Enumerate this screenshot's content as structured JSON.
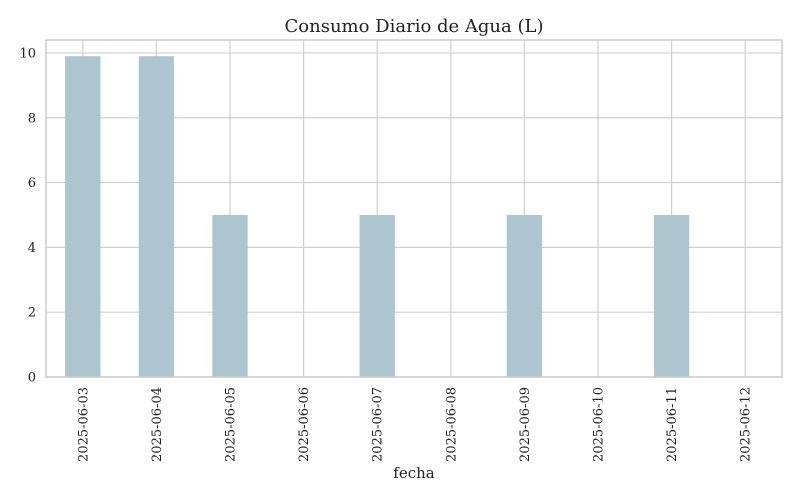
{
  "chart_data": {
    "type": "bar",
    "title": "Consumo Diario de Agua (L)",
    "xlabel": "fecha",
    "ylabel": "",
    "categories": [
      "2025-06-03",
      "2025-06-04",
      "2025-06-05",
      "2025-06-06",
      "2025-06-07",
      "2025-06-08",
      "2025-06-09",
      "2025-06-10",
      "2025-06-11",
      "2025-06-12"
    ],
    "values": [
      9.9,
      9.9,
      5.0,
      0,
      5.0,
      0,
      5.0,
      0,
      5.0,
      0
    ],
    "ylim": [
      0,
      10.4
    ],
    "yticks": [
      0,
      2,
      4,
      6,
      8,
      10
    ],
    "grid": true,
    "legend": "none",
    "colors": {
      "bar": "#adc5ce",
      "grid": "#d0d0d0",
      "frame": "#cccccc",
      "text": "#222222"
    }
  }
}
